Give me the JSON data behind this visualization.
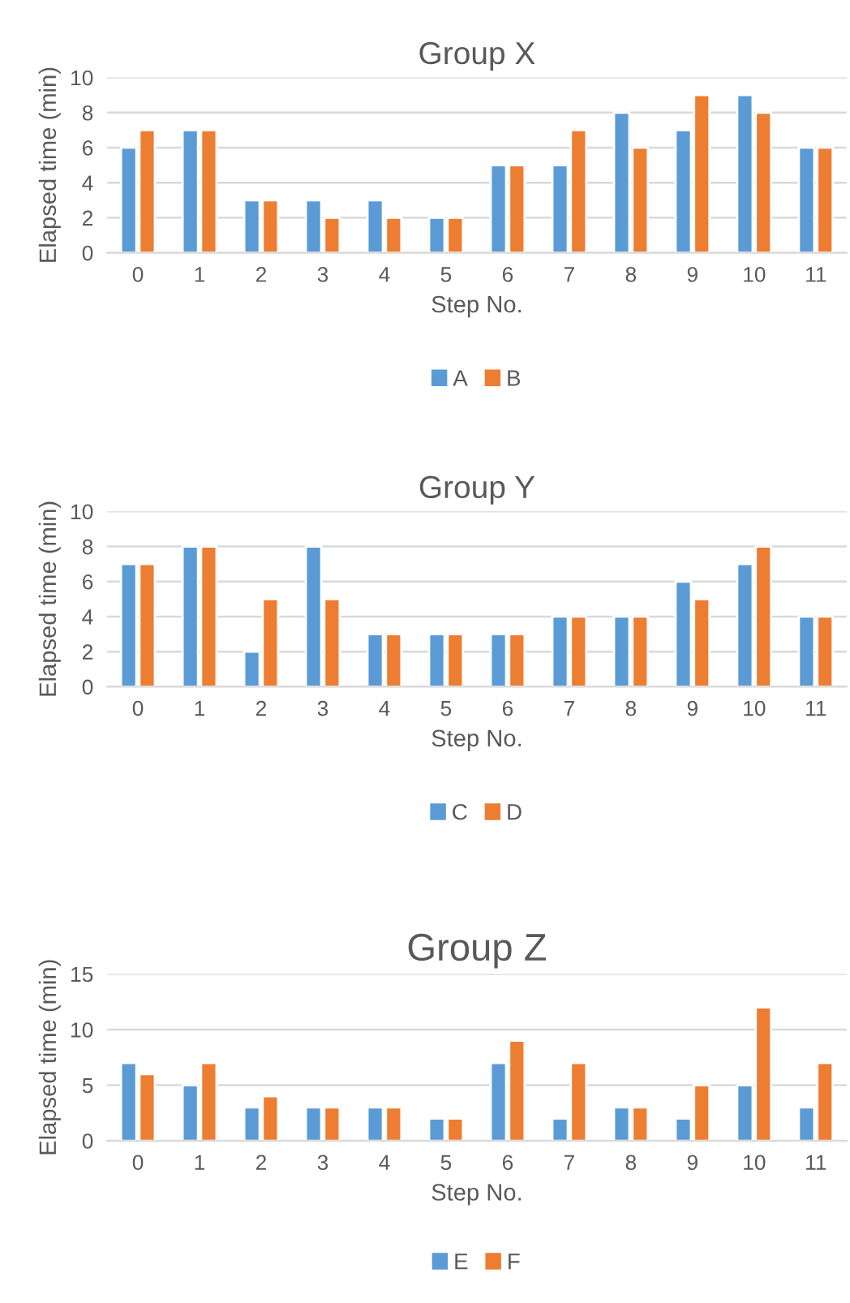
{
  "chart_data": [
    {
      "type": "bar",
      "title": "Group X",
      "xlabel": "Step No.",
      "ylabel": "Elapsed time (min)",
      "categories": [
        "0",
        "1",
        "2",
        "3",
        "4",
        "5",
        "6",
        "7",
        "8",
        "9",
        "10",
        "11"
      ],
      "ylim": [
        0,
        10
      ],
      "yticks": [
        0,
        2,
        4,
        6,
        8,
        10
      ],
      "grid": "y",
      "legend": "bottom",
      "series": [
        {
          "name": "A",
          "color": "#5b9bd5",
          "values": [
            6,
            7,
            3,
            3,
            3,
            2,
            5,
            5,
            8,
            7,
            9,
            6
          ]
        },
        {
          "name": "B",
          "color": "#ed7d31",
          "values": [
            7,
            7,
            3,
            2,
            2,
            2,
            5,
            7,
            6,
            9,
            8,
            6
          ]
        }
      ]
    },
    {
      "type": "bar",
      "title": "Group Y",
      "xlabel": "Step No.",
      "ylabel": "Elapsed time (min)",
      "categories": [
        "0",
        "1",
        "2",
        "3",
        "4",
        "5",
        "6",
        "7",
        "8",
        "9",
        "10",
        "11"
      ],
      "ylim": [
        0,
        10
      ],
      "yticks": [
        0,
        2,
        4,
        6,
        8,
        10
      ],
      "grid": "y",
      "legend": "bottom",
      "series": [
        {
          "name": "C",
          "color": "#5b9bd5",
          "values": [
            7,
            8,
            2,
            8,
            3,
            3,
            3,
            4,
            4,
            6,
            7,
            4
          ]
        },
        {
          "name": "D",
          "color": "#ed7d31",
          "values": [
            7,
            8,
            5,
            5,
            3,
            3,
            3,
            4,
            4,
            5,
            8,
            4
          ]
        }
      ]
    },
    {
      "type": "bar",
      "title": "Group Z",
      "xlabel": "Step No.",
      "ylabel": "Elapsed time (min)",
      "categories": [
        "0",
        "1",
        "2",
        "3",
        "4",
        "5",
        "6",
        "7",
        "8",
        "9",
        "10",
        "11"
      ],
      "ylim": [
        0,
        15
      ],
      "yticks": [
        0,
        5,
        10,
        15
      ],
      "grid": "y",
      "legend": "bottom",
      "series": [
        {
          "name": "E",
          "color": "#5b9bd5",
          "values": [
            7,
            5,
            3,
            3,
            3,
            2,
            7,
            2,
            3,
            2,
            5,
            3
          ]
        },
        {
          "name": "F",
          "color": "#ed7d31",
          "values": [
            6,
            7,
            4,
            3,
            3,
            2,
            9,
            7,
            3,
            5,
            12,
            7
          ]
        }
      ]
    }
  ]
}
